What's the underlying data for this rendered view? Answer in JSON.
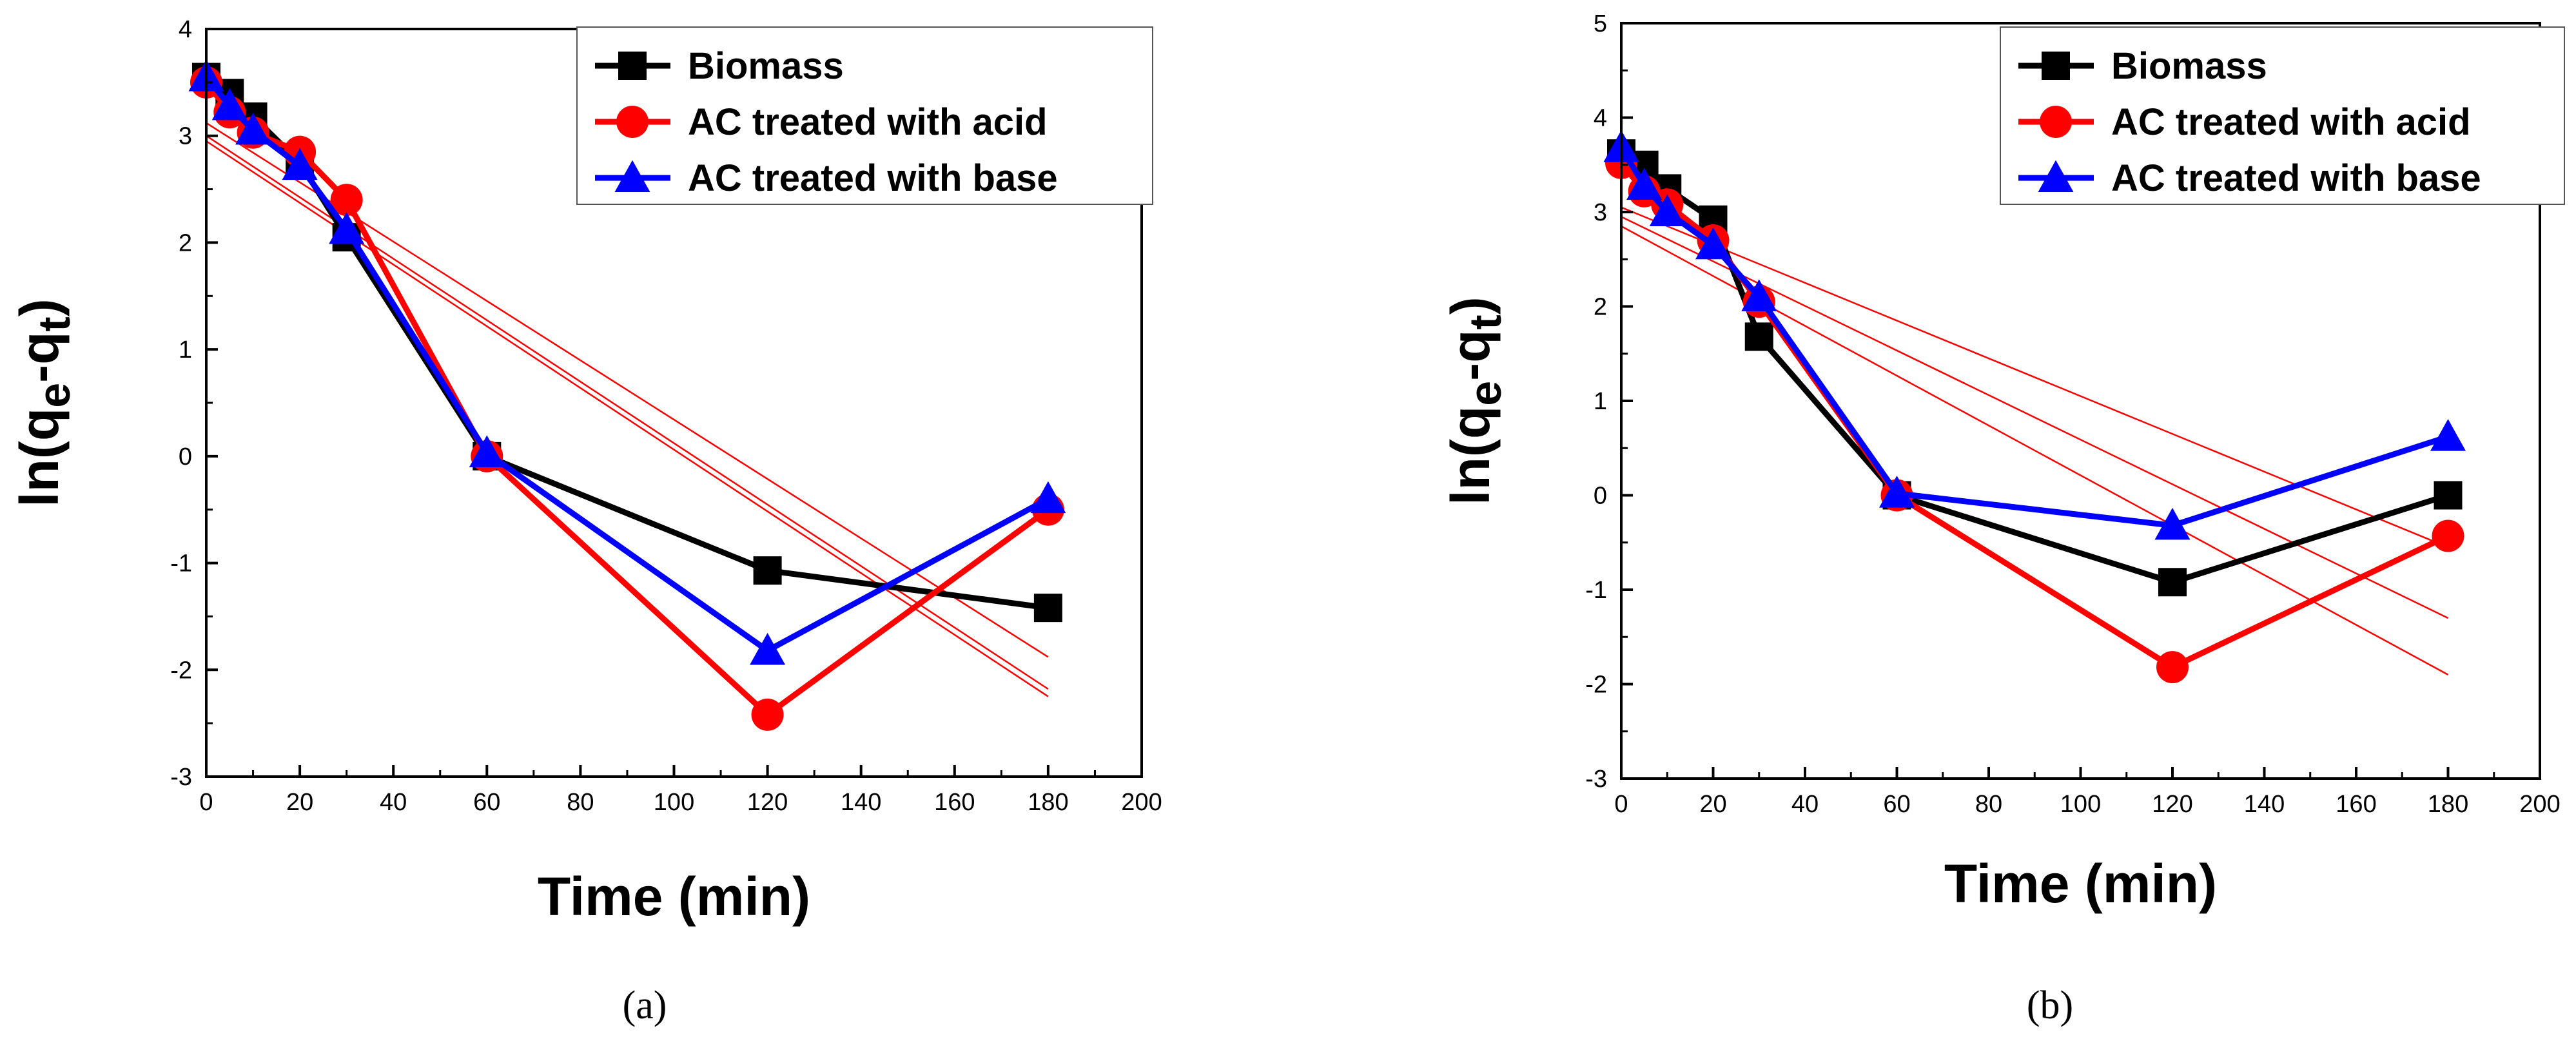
{
  "chart_data": [
    {
      "type": "line",
      "panel": "(a)",
      "xlabel": "Time (min)",
      "ylabel": "ln(qe-qt)",
      "ylabel_parts": {
        "base": "ln(q",
        "sub1": "e",
        "mid": "-q",
        "sub2": "t",
        "end": ")"
      },
      "xlim": [
        0,
        200
      ],
      "ylim": [
        -3,
        4
      ],
      "xticks": [
        "0",
        "20",
        "40",
        "60",
        "80",
        "100",
        "120",
        "140",
        "160",
        "180",
        "200"
      ],
      "yticks": [
        "-3",
        "-2",
        "-1",
        "0",
        "1",
        "2",
        "3",
        "4"
      ],
      "legend_position": "top-right",
      "series": [
        {
          "name": "Biomass",
          "color": "#000000",
          "marker": "square",
          "x": [
            0,
            5,
            10,
            20,
            30,
            60,
            120,
            180
          ],
          "y": [
            3.55,
            3.4,
            3.18,
            2.75,
            2.05,
            0.0,
            -1.07,
            -1.42
          ]
        },
        {
          "name": "AC treated with acid",
          "color": "#ff0000",
          "marker": "circle",
          "x": [
            0,
            5,
            10,
            20,
            30,
            60,
            120,
            180
          ],
          "y": [
            3.5,
            3.22,
            3.03,
            2.85,
            2.4,
            0.0,
            -2.42,
            -0.5
          ]
        },
        {
          "name": "AC treated with base",
          "color": "#0000ff",
          "marker": "triangle",
          "x": [
            0,
            5,
            10,
            20,
            30,
            60,
            120,
            180
          ],
          "y": [
            3.55,
            3.28,
            3.05,
            2.72,
            2.12,
            0.03,
            -1.82,
            -0.4
          ]
        }
      ],
      "fit_lines": [
        {
          "x": [
            0,
            180
          ],
          "y": [
            3.12,
            -1.88
          ]
        },
        {
          "x": [
            0,
            180
          ],
          "y": [
            3.0,
            -2.18
          ]
        },
        {
          "x": [
            0,
            180
          ],
          "y": [
            2.95,
            -2.25
          ]
        }
      ]
    },
    {
      "type": "line",
      "panel": "(b)",
      "xlabel": "Time (min)",
      "ylabel": "ln(qe-qt)",
      "ylabel_parts": {
        "base": "ln(q",
        "sub1": "e",
        "mid": "-q",
        "sub2": "t",
        "end": ")"
      },
      "xlim": [
        0,
        200
      ],
      "ylim": [
        -3,
        5
      ],
      "xticks": [
        "0",
        "20",
        "40",
        "60",
        "80",
        "100",
        "120",
        "140",
        "160",
        "180",
        "200"
      ],
      "yticks": [
        "-3",
        "-2",
        "-1",
        "0",
        "1",
        "2",
        "3",
        "4",
        "5"
      ],
      "legend_position": "top-right",
      "series": [
        {
          "name": "Biomass",
          "color": "#000000",
          "marker": "square",
          "x": [
            0,
            5,
            10,
            20,
            30,
            60,
            120,
            180
          ],
          "y": [
            3.62,
            3.5,
            3.25,
            2.92,
            1.68,
            0.0,
            -0.92,
            0.0
          ]
        },
        {
          "name": "AC treated with acid",
          "color": "#ff0000",
          "marker": "circle",
          "x": [
            0,
            5,
            10,
            20,
            30,
            60,
            120,
            180
          ],
          "y": [
            3.52,
            3.22,
            3.08,
            2.7,
            2.05,
            0.0,
            -1.82,
            -0.43
          ]
        },
        {
          "name": "AC treated with base",
          "color": "#0000ff",
          "marker": "triangle",
          "x": [
            0,
            5,
            10,
            20,
            30,
            60,
            120,
            180
          ],
          "y": [
            3.68,
            3.28,
            3.0,
            2.65,
            2.1,
            0.02,
            -0.32,
            0.62
          ]
        }
      ],
      "fit_lines": [
        {
          "x": [
            0,
            180
          ],
          "y": [
            3.05,
            -0.55
          ]
        },
        {
          "x": [
            0,
            180
          ],
          "y": [
            2.95,
            -1.3
          ]
        },
        {
          "x": [
            0,
            180
          ],
          "y": [
            2.85,
            -1.9
          ]
        }
      ]
    }
  ]
}
